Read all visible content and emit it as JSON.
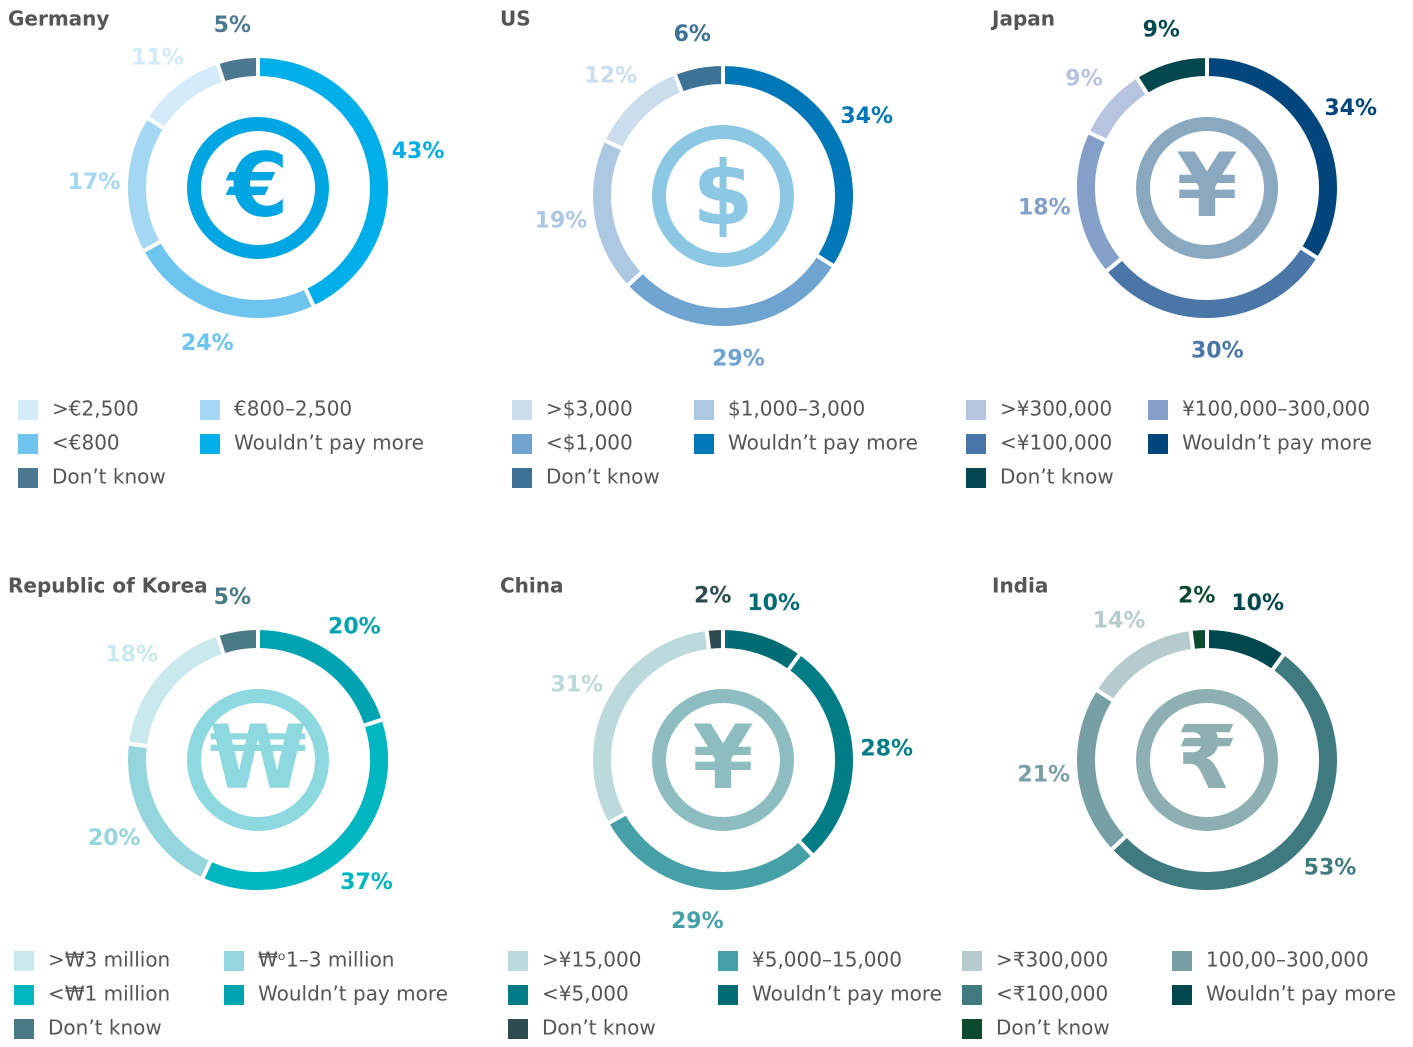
{
  "chart_data": [
    {
      "type": "pie",
      "title": "Germany",
      "symbol": "€",
      "symbol_color": "#00a6e2",
      "categories": [
        ">€2,500",
        "€800–2,500",
        "<€800",
        "Wouldn’t pay more",
        "Don’t know"
      ],
      "values": [
        11,
        17,
        24,
        43,
        5
      ],
      "value_labels": [
        "11%",
        "17%",
        "24%",
        "43%",
        "5%"
      ],
      "colors": [
        "#d3ebfa",
        "#a3d7f4",
        "#6cc4ef",
        "#00aeea",
        "#4d7891"
      ]
    },
    {
      "type": "pie",
      "title": "US",
      "symbol": "$",
      "symbol_color": "#8cc7e3",
      "categories": [
        ">$3,000",
        "$1,000–3,000",
        "<$1,000",
        "Wouldn’t pay more",
        "Don’t know"
      ],
      "values": [
        12,
        19,
        29,
        34,
        6
      ],
      "value_labels": [
        "12%",
        "19%",
        "29%",
        "34%",
        "6%"
      ],
      "colors": [
        "#cbdcec",
        "#adc8e3",
        "#6fa3d0",
        "#0077b6",
        "#3d7196"
      ]
    },
    {
      "type": "pie",
      "title": "Japan",
      "symbol": "¥",
      "symbol_color": "#8aa9c1",
      "categories": [
        ">¥300,000",
        "¥100,000–300,000",
        "<¥100,000",
        "Wouldn’t pay more",
        "Don’t know"
      ],
      "values": [
        9,
        18,
        30,
        34,
        9
      ],
      "value_labels": [
        "9%",
        "18%",
        "30%",
        "34%",
        "9%"
      ],
      "colors": [
        "#b7c4df",
        "#849fc8",
        "#4a77a8",
        "#00457c",
        "#04474f"
      ]
    },
    {
      "type": "pie",
      "title": "Republic of Korea",
      "symbol": "₩",
      "symbol_color": "#8ed9e0",
      "categories": [
        ">₩3 million",
        "₩ᵒ1–3 million",
        "<₩1 million",
        "Wouldn’t pay more",
        "Don’t know"
      ],
      "values": [
        18,
        20,
        37,
        20,
        5
      ],
      "value_labels": [
        "18%",
        "20%",
        "37%",
        "20%",
        "5%"
      ],
      "colors": [
        "#c9e9ec",
        "#95d6de",
        "#00b6c0",
        "#00a3b0",
        "#4a7a85"
      ]
    },
    {
      "type": "pie",
      "title": "China",
      "symbol": "¥",
      "symbol_color": "#8dbdc1",
      "categories": [
        ">¥15,000",
        "¥5,000–15,000",
        "<¥5,000",
        "Wouldn’t pay more",
        "Don’t know"
      ],
      "values": [
        31,
        29,
        28,
        10,
        2
      ],
      "value_labels": [
        "31%",
        "29%",
        "28%",
        "10%",
        "2%"
      ],
      "colors": [
        "#bcd9dc",
        "#45a0a7",
        "#007c86",
        "#006c73",
        "#2f4b52"
      ]
    },
    {
      "type": "pie",
      "title": "India",
      "symbol": "₹",
      "symbol_color": "#8fb0b3",
      "categories": [
        ">₹300,000",
        "100,00–300,000",
        "<₹100,000",
        "Wouldn’t pay more",
        "Don’t know"
      ],
      "values": [
        14,
        21,
        53,
        10,
        2
      ],
      "value_labels": [
        "14%",
        "21%",
        "53%",
        "10%",
        "2%"
      ],
      "colors": [
        "#b6cbce",
        "#77a0a6",
        "#3f7a80",
        "#00474e",
        "#0b4a2f"
      ]
    }
  ]
}
